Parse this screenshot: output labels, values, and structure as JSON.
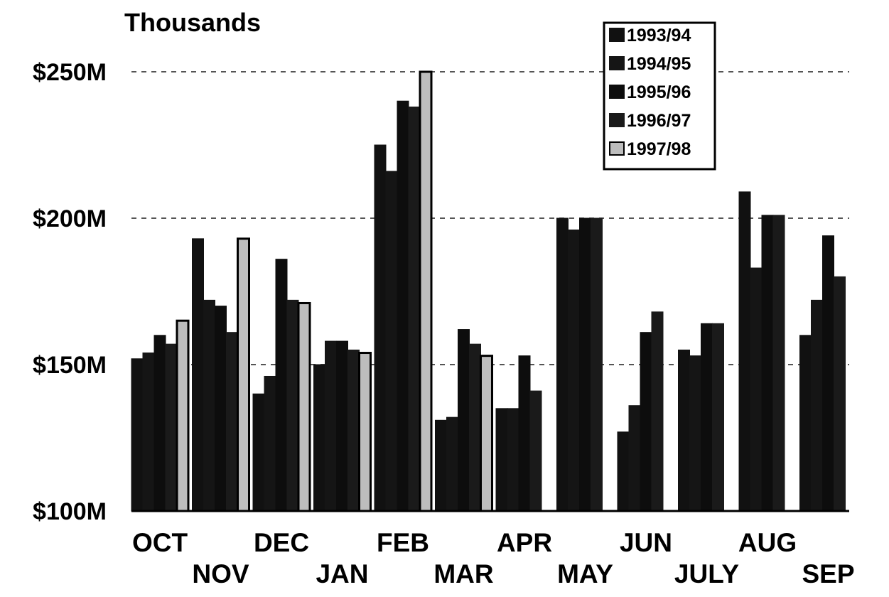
{
  "chart_data": {
    "type": "bar",
    "unit_label": "Thousands",
    "ylim": [
      100,
      250
    ],
    "y_ticks": [
      {
        "value": 100,
        "label": "$100M"
      },
      {
        "value": 150,
        "label": "$150M"
      },
      {
        "value": 200,
        "label": "$200M"
      },
      {
        "value": 250,
        "label": "$250M"
      }
    ],
    "grid": true,
    "legend_position": "top-right",
    "categories": [
      "OCT",
      "NOV",
      "DEC",
      "JAN",
      "FEB",
      "MAR",
      "APR",
      "MAY",
      "JUN",
      "JULY",
      "AUG",
      "SEP"
    ],
    "series": [
      {
        "name": "1993/94",
        "color": "#111111",
        "values": [
          152,
          193,
          140,
          150,
          225,
          131,
          135,
          200,
          127,
          155,
          209,
          160
        ]
      },
      {
        "name": "1994/95",
        "color": "#151515",
        "values": [
          154,
          172,
          146,
          158,
          216,
          132,
          135,
          196,
          136,
          153,
          183,
          172
        ]
      },
      {
        "name": "1995/96",
        "color": "#0d0d0d",
        "values": [
          160,
          170,
          186,
          158,
          240,
          162,
          153,
          200,
          161,
          164,
          201,
          194
        ]
      },
      {
        "name": "1996/97",
        "color": "#1a1a1a",
        "values": [
          157,
          161,
          172,
          155,
          238,
          157,
          141,
          200,
          168,
          164,
          201,
          180
        ]
      },
      {
        "name": "1997/98",
        "color": "#bdbdbd",
        "values": [
          165,
          193,
          171,
          154,
          250,
          153,
          null,
          null,
          null,
          null,
          null,
          null
        ]
      }
    ]
  }
}
